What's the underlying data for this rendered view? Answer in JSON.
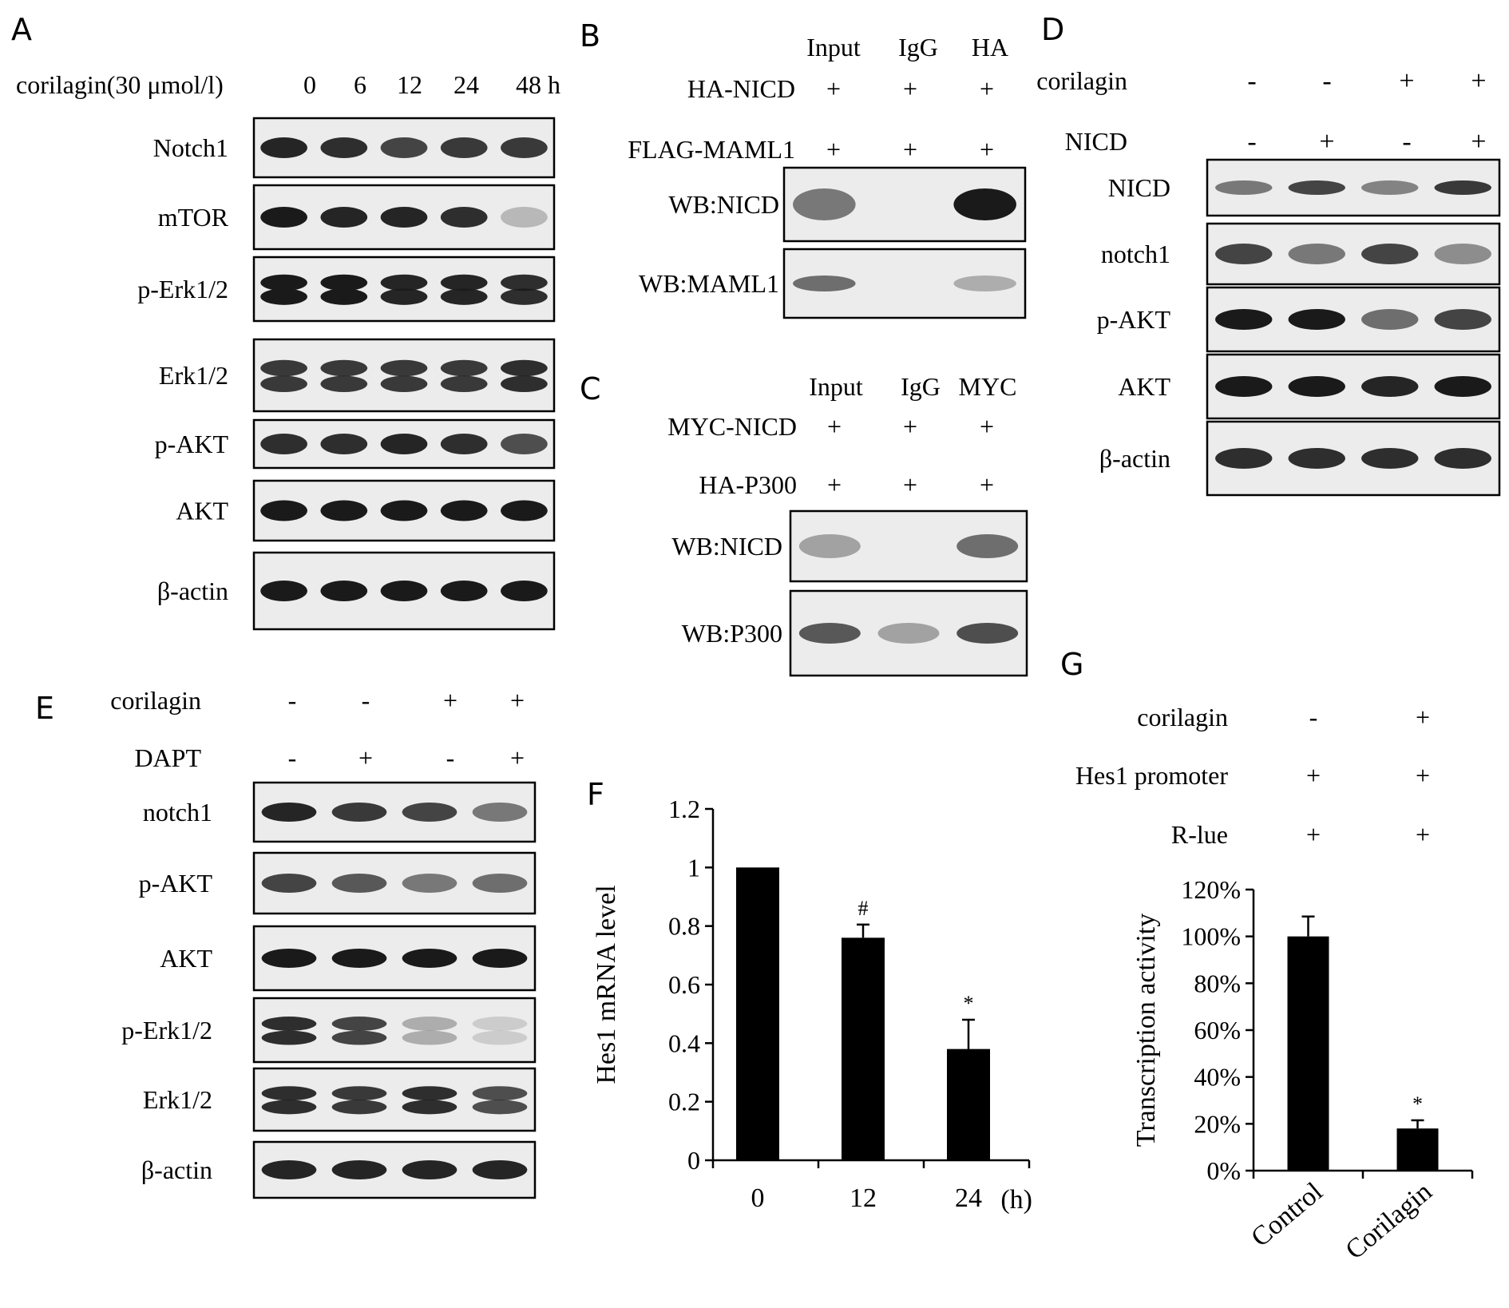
{
  "colors": {
    "ink": "#000000",
    "band": "#1a1a1a",
    "gel": "#ececec",
    "gel_mid": "#d6d6d6",
    "gel_dark": "#9a9a9a"
  },
  "panelA": {
    "letter": "A",
    "treatment": "corilagin(30 μmol/l)",
    "lanes": [
      "0",
      "6",
      "12",
      "24",
      "48 h"
    ],
    "blots": [
      {
        "label": "Notch1",
        "band_intensity": [
          0.95,
          0.9,
          0.8,
          0.85,
          0.85
        ],
        "doublet": false
      },
      {
        "label": "mTOR",
        "band_intensity": [
          1.0,
          0.95,
          0.95,
          0.9,
          0.25
        ],
        "doublet": false
      },
      {
        "label": "p-Erk1/2",
        "band_intensity": [
          1.0,
          1.0,
          0.95,
          0.95,
          0.9
        ],
        "doublet": true
      },
      {
        "label": "Erk1/2",
        "band_intensity": [
          0.85,
          0.85,
          0.85,
          0.85,
          0.9
        ],
        "doublet": true
      },
      {
        "label": "p-AKT",
        "band_intensity": [
          0.9,
          0.9,
          0.95,
          0.9,
          0.75
        ],
        "doublet": false
      },
      {
        "label": "AKT",
        "band_intensity": [
          1.0,
          1.0,
          1.0,
          1.0,
          1.0
        ],
        "doublet": false
      },
      {
        "label": "β-actin",
        "band_intensity": [
          1.0,
          1.0,
          1.0,
          1.0,
          1.0
        ],
        "doublet": false
      }
    ]
  },
  "panelB": {
    "letter": "B",
    "columns": [
      "Input",
      "IgG",
      "HA"
    ],
    "conditions": [
      {
        "label": "HA-NICD",
        "values": [
          "+",
          "+",
          "+"
        ]
      },
      {
        "label": "FLAG-MAML1",
        "values": [
          "+",
          "+",
          "+"
        ]
      }
    ],
    "blots": [
      {
        "label": "WB:NICD",
        "band_intensity": [
          0.55,
          0.0,
          1.0
        ]
      },
      {
        "label": "WB:MAML1",
        "band_intensity": [
          0.6,
          0.0,
          0.3
        ]
      }
    ]
  },
  "panelC": {
    "letter": "C",
    "columns": [
      "Input",
      "IgG",
      "MYC"
    ],
    "conditions": [
      {
        "label": "MYC-NICD",
        "values": [
          "+",
          "+",
          "+"
        ]
      },
      {
        "label": "HA-P300",
        "values": [
          "+",
          "+",
          "+"
        ]
      }
    ],
    "blots": [
      {
        "label": "WB:NICD",
        "band_intensity": [
          0.35,
          0.0,
          0.6
        ]
      },
      {
        "label": "WB:P300",
        "band_intensity": [
          0.7,
          0.35,
          0.75
        ]
      }
    ]
  },
  "panelD": {
    "letter": "D",
    "conditions": [
      {
        "label": "corilagin",
        "values": [
          "-",
          "-",
          "+",
          "+"
        ]
      },
      {
        "label": "NICD",
        "values": [
          "-",
          "+",
          "-",
          "+"
        ]
      }
    ],
    "blots": [
      {
        "label": "NICD",
        "band_intensity": [
          0.55,
          0.8,
          0.5,
          0.85
        ],
        "doublet": false
      },
      {
        "label": "notch1",
        "band_intensity": [
          0.8,
          0.55,
          0.8,
          0.45
        ],
        "doublet": false
      },
      {
        "label": "p-AKT",
        "band_intensity": [
          1.0,
          1.0,
          0.6,
          0.8
        ],
        "doublet": false
      },
      {
        "label": "AKT",
        "band_intensity": [
          1.0,
          1.0,
          0.95,
          1.0
        ],
        "doublet": false
      },
      {
        "label": "β-actin",
        "band_intensity": [
          0.9,
          0.9,
          0.9,
          0.9
        ],
        "doublet": false
      }
    ]
  },
  "panelE": {
    "letter": "E",
    "conditions": [
      {
        "label": "corilagin",
        "values": [
          "-",
          "-",
          "+",
          "+"
        ]
      },
      {
        "label": "DAPT",
        "values": [
          "-",
          "+",
          "-",
          "+"
        ]
      }
    ],
    "blots": [
      {
        "label": "notch1",
        "band_intensity": [
          0.95,
          0.85,
          0.8,
          0.55
        ],
        "doublet": false
      },
      {
        "label": "p-AKT",
        "band_intensity": [
          0.8,
          0.7,
          0.55,
          0.6
        ],
        "doublet": false
      },
      {
        "label": "AKT",
        "band_intensity": [
          1.0,
          1.0,
          1.0,
          1.0
        ],
        "doublet": false
      },
      {
        "label": "p-Erk1/2",
        "band_intensity": [
          0.9,
          0.8,
          0.3,
          0.15
        ],
        "doublet": true
      },
      {
        "label": "Erk1/2",
        "band_intensity": [
          0.9,
          0.85,
          0.9,
          0.75
        ],
        "doublet": true
      },
      {
        "label": "β-actin",
        "band_intensity": [
          0.95,
          0.95,
          0.95,
          0.95
        ],
        "doublet": false
      }
    ]
  },
  "chart_data": [
    {
      "panel": "F",
      "type": "bar",
      "categories": [
        "0",
        "12",
        "24"
      ],
      "values": [
        1.0,
        0.76,
        0.38
      ],
      "errors": [
        0.0,
        0.045,
        0.1
      ],
      "annotations": [
        "",
        "#",
        "*"
      ],
      "xlabel": "",
      "x_unit": "(h)",
      "ylabel": "Hes1  mRNA  level",
      "ylim": [
        0,
        1.2
      ],
      "yticks": [
        "0",
        "0.2",
        "0.4",
        "0.6",
        "0.8",
        "1",
        "1.2"
      ],
      "grid": false
    },
    {
      "panel": "G",
      "type": "bar",
      "conditions": [
        {
          "label": "corilagin",
          "values": [
            "-",
            "+"
          ]
        },
        {
          "label": "Hes1 promoter",
          "values": [
            "+",
            "+"
          ]
        },
        {
          "label": "R-lue",
          "values": [
            "+",
            "+"
          ]
        }
      ],
      "categories": [
        "Control",
        "Corilagin"
      ],
      "values": [
        100,
        18
      ],
      "errors": [
        8.5,
        3.5
      ],
      "annotations": [
        "",
        "*"
      ],
      "xlabel": "",
      "ylabel": "Transcription activity",
      "ylim": [
        0,
        120
      ],
      "yticks": [
        "0%",
        "20%",
        "40%",
        "60%",
        "80%",
        "100%",
        "120%"
      ],
      "grid": false
    }
  ]
}
